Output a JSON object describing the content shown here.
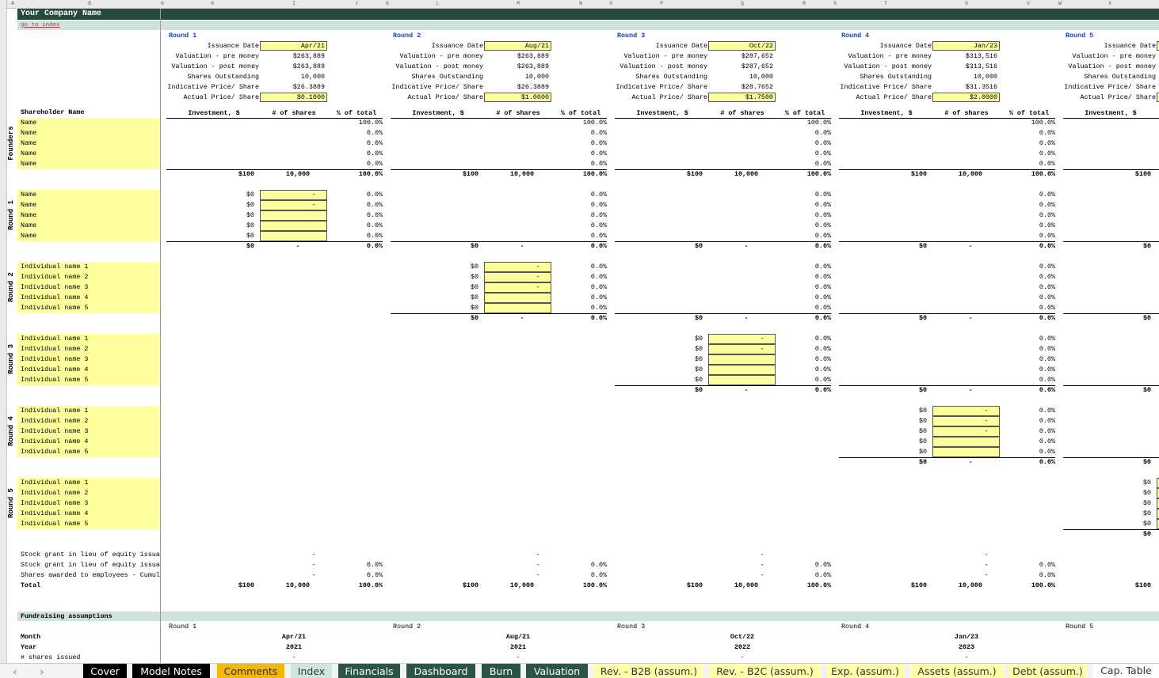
{
  "column_letters": [
    "A",
    "B",
    "G",
    "H",
    "I",
    "J",
    "K",
    "L",
    "M",
    "N",
    "O",
    "P",
    "Q",
    "R",
    "S",
    "T",
    "U",
    "V",
    "W",
    "X"
  ],
  "header": {
    "title": "Your Company Name",
    "link": "go to index"
  },
  "round_field_labels": [
    "Issuance Date",
    "Valuation - pre money",
    "Valuation - post money",
    "Shares Outstanding",
    "Indicative Price/ Share",
    "Actual Price/ Share"
  ],
  "rounds": [
    {
      "title": "Round 1",
      "fields": [
        "Apr/21",
        "$263,889",
        "$263,889",
        "10,000",
        "$26.3889",
        "$0.1000"
      ]
    },
    {
      "title": "Round 2",
      "fields": [
        "Aug/21",
        "$263,889",
        "$263,889",
        "10,000",
        "$26.3889",
        "$1.0000"
      ]
    },
    {
      "title": "Round 3",
      "fields": [
        "Oct/22",
        "$287,652",
        "$287,652",
        "10,000",
        "$28.7652",
        "$1.7500"
      ]
    },
    {
      "title": "Round 4",
      "fields": [
        "Jan/23",
        "$313,516",
        "$313,516",
        "10,000",
        "$31.3516",
        "$2.0000"
      ]
    },
    {
      "title": "Round 5"
    }
  ],
  "shareholder_header": "Shareholder Name",
  "table_headers": [
    "Investment, $",
    "# of shares",
    "% of total"
  ],
  "groups": [
    {
      "label": "Founders",
      "names": [
        "Name",
        "Name",
        "Name",
        "Name",
        "Name"
      ]
    },
    {
      "label": "Round 1",
      "names": [
        "Name",
        "Name",
        "Name",
        "Name",
        "Name"
      ]
    },
    {
      "label": "Round 2",
      "names": [
        "Individual name 1",
        "Individual name 2",
        "Individual name 3",
        "Individual name 4",
        "Individual name 5"
      ]
    },
    {
      "label": "Round 3",
      "names": [
        "Individual name 1",
        "Individual name 2",
        "Individual name 3",
        "Individual name 4",
        "Individual name 5"
      ]
    },
    {
      "label": "Round 4",
      "names": [
        "Individual name 1",
        "Individual name 2",
        "Individual name 3",
        "Individual name 4",
        "Individual name 5"
      ]
    },
    {
      "label": "Round 5",
      "names": [
        "Individual name 1",
        "Individual name 2",
        "Individual name 3",
        "Individual name 4",
        "Individual name 5"
      ]
    }
  ],
  "blocks": [
    {
      "sections": [
        {
          "rows": [
            [
              null,
              null,
              "100.0%"
            ],
            [
              null,
              null,
              "0.0%"
            ],
            [
              null,
              null,
              "0.0%"
            ],
            [
              null,
              null,
              "0.0%"
            ],
            [
              null,
              null,
              "0.0%"
            ]
          ],
          "total": [
            "$100",
            "10,000",
            "100.0%"
          ]
        },
        {
          "input": true,
          "rows": [
            [
              "$0",
              "-",
              "0.0%"
            ],
            [
              "$0",
              "-",
              "0.0%"
            ],
            [
              "$0",
              null,
              "0.0%"
            ],
            [
              "$0",
              null,
              "0.0%"
            ],
            [
              "$0",
              null,
              "0.0%"
            ]
          ],
          "total": [
            "$0",
            "-",
            "0.0%"
          ]
        },
        null,
        null,
        null,
        null
      ],
      "grants": [
        [
          null,
          "-",
          null
        ],
        [
          null,
          "-",
          "0.0%"
        ],
        [
          null,
          "-",
          "0.0%"
        ]
      ],
      "total": [
        "$100",
        "10,000",
        "100.0%"
      ]
    },
    {
      "sections": [
        {
          "rows": [
            [
              null,
              null,
              "100.0%"
            ],
            [
              null,
              null,
              "0.0%"
            ],
            [
              null,
              null,
              "0.0%"
            ],
            [
              null,
              null,
              "0.0%"
            ],
            [
              null,
              null,
              "0.0%"
            ]
          ],
          "total": [
            "$100",
            "10,000",
            "100.0%"
          ]
        },
        {
          "rows": [
            [
              null,
              null,
              "0.0%"
            ],
            [
              null,
              null,
              "0.0%"
            ],
            [
              null,
              null,
              "0.0%"
            ],
            [
              null,
              null,
              "0.0%"
            ],
            [
              null,
              null,
              "0.0%"
            ]
          ],
          "total": [
            "$0",
            "-",
            "0.0%"
          ]
        },
        {
          "input": true,
          "rows": [
            [
              "$0",
              "-",
              "0.0%"
            ],
            [
              "$0",
              "-",
              "0.0%"
            ],
            [
              "$0",
              "-",
              "0.0%"
            ],
            [
              "$0",
              null,
              "0.0%"
            ],
            [
              "$0",
              null,
              "0.0%"
            ]
          ],
          "total": [
            "$0",
            "-",
            "0.0%"
          ]
        },
        null,
        null,
        null
      ],
      "grants": [
        [
          null,
          "-",
          null
        ],
        [
          null,
          "-",
          "0.0%"
        ],
        [
          null,
          "-",
          "0.0%"
        ]
      ],
      "total": [
        "$100",
        "10,000",
        "100.0%"
      ]
    },
    {
      "sections": [
        {
          "rows": [
            [
              null,
              null,
              "100.0%"
            ],
            [
              null,
              null,
              "0.0%"
            ],
            [
              null,
              null,
              "0.0%"
            ],
            [
              null,
              null,
              "0.0%"
            ],
            [
              null,
              null,
              "0.0%"
            ]
          ],
          "total": [
            "$100",
            "10,000",
            "100.0%"
          ]
        },
        {
          "rows": [
            [
              null,
              null,
              "0.0%"
            ],
            [
              null,
              null,
              "0.0%"
            ],
            [
              null,
              null,
              "0.0%"
            ],
            [
              null,
              null,
              "0.0%"
            ],
            [
              null,
              null,
              "0.0%"
            ]
          ],
          "total": [
            "$0",
            "-",
            "0.0%"
          ]
        },
        {
          "rows": [
            [
              null,
              null,
              "0.0%"
            ],
            [
              null,
              null,
              "0.0%"
            ],
            [
              null,
              null,
              "0.0%"
            ],
            [
              null,
              null,
              "0.0%"
            ],
            [
              null,
              null,
              "0.0%"
            ]
          ],
          "total": [
            "$0",
            "-",
            "0.0%"
          ]
        },
        {
          "input": true,
          "rows": [
            [
              "$0",
              "-",
              "0.0%"
            ],
            [
              "$0",
              "-",
              "0.0%"
            ],
            [
              "$0",
              null,
              "0.0%"
            ],
            [
              "$0",
              null,
              "0.0%"
            ],
            [
              "$0",
              null,
              "0.0%"
            ]
          ],
          "total": [
            "$0",
            "-",
            "0.0%"
          ]
        },
        null,
        null
      ],
      "grants": [
        [
          null,
          "-",
          null
        ],
        [
          null,
          "-",
          "0.0%"
        ],
        [
          null,
          "-",
          "0.0%"
        ]
      ],
      "total": [
        "$100",
        "10,000",
        "100.0%"
      ]
    },
    {
      "sections": [
        {
          "rows": [
            [
              null,
              null,
              "100.0%"
            ],
            [
              null,
              null,
              "0.0%"
            ],
            [
              null,
              null,
              "0.0%"
            ],
            [
              null,
              null,
              "0.0%"
            ],
            [
              null,
              null,
              "0.0%"
            ]
          ],
          "total": [
            "$100",
            "10,000",
            "100.0%"
          ]
        },
        {
          "rows": [
            [
              null,
              null,
              "0.0%"
            ],
            [
              null,
              null,
              "0.0%"
            ],
            [
              null,
              null,
              "0.0%"
            ],
            [
              null,
              null,
              "0.0%"
            ],
            [
              null,
              null,
              "0.0%"
            ]
          ],
          "total": [
            "$0",
            "-",
            "0.0%"
          ]
        },
        {
          "rows": [
            [
              null,
              null,
              "0.0%"
            ],
            [
              null,
              null,
              "0.0%"
            ],
            [
              null,
              null,
              "0.0%"
            ],
            [
              null,
              null,
              "0.0%"
            ],
            [
              null,
              null,
              "0.0%"
            ]
          ],
          "total": [
            "$0",
            "-",
            "0.0%"
          ]
        },
        {
          "rows": [
            [
              null,
              null,
              "0.0%"
            ],
            [
              null,
              null,
              "0.0%"
            ],
            [
              null,
              null,
              "0.0%"
            ],
            [
              null,
              null,
              "0.0%"
            ],
            [
              null,
              null,
              "0.0%"
            ]
          ],
          "total": [
            "$0",
            "-",
            "0.0%"
          ]
        },
        {
          "input": true,
          "rows": [
            [
              "$0",
              "-",
              "0.0%"
            ],
            [
              "$0",
              "-",
              "0.0%"
            ],
            [
              "$0",
              "-",
              "0.0%"
            ],
            [
              "$0",
              null,
              "0.0%"
            ],
            [
              "$0",
              null,
              "0.0%"
            ]
          ],
          "total": [
            "$0",
            "-",
            "0.0%"
          ]
        },
        null
      ],
      "grants": [
        [
          null,
          "-",
          null
        ],
        [
          null,
          "-",
          "0.0%"
        ],
        [
          null,
          "-",
          "0.0%"
        ]
      ],
      "total": [
        "$100",
        "10,000",
        "100.0%"
      ]
    },
    {
      "sections": [
        {
          "total": [
            "$100",
            null,
            null
          ]
        },
        {
          "total": [
            "$0",
            null,
            null
          ]
        },
        {
          "total": [
            "$0",
            null,
            null
          ]
        },
        {
          "total": [
            "$0",
            null,
            null
          ]
        },
        {
          "total": [
            "$0",
            null,
            null
          ]
        },
        {
          "input": true,
          "rows": [
            [
              "$0",
              null,
              null
            ],
            [
              "$0",
              null,
              null
            ],
            [
              "$0",
              null,
              null
            ],
            [
              "$0",
              null,
              null
            ],
            [
              "$0",
              null,
              null
            ]
          ],
          "total": [
            "$0",
            null,
            null
          ]
        }
      ],
      "total": [
        "$100",
        null,
        null
      ]
    }
  ],
  "grant_labels": [
    "Stock grant in lieu of equity issua",
    "Stock grant in lieu of equity issua",
    "Shares awarded to employees - Cumul"
  ],
  "total_label": "Total",
  "fundraising": {
    "title": "Fundraising assumptions",
    "labels": [
      "Month",
      "Year",
      "# shares issued"
    ],
    "rounds": [
      {
        "title": "Round 1",
        "month": "Apr/21",
        "year": "2021",
        "shares": "-"
      },
      {
        "title": "Round 2",
        "month": "Aug/21",
        "year": "2021",
        "shares": "-"
      },
      {
        "title": "Round 3",
        "month": "Oct/22",
        "year": "2022",
        "shares": "-"
      },
      {
        "title": "Round 4",
        "month": "Jan/23",
        "year": "2023",
        "shares": "-"
      },
      {
        "title": "Round 5"
      }
    ]
  },
  "tabs": [
    "Cover",
    "Model Notes",
    "Comments",
    "Index",
    "Financials",
    "Dashboard",
    "Burn",
    "Valuation",
    "Rev. - B2B (assum.)",
    "Rev. - B2C (assum.)",
    "Exp. (assum.)",
    "Assets (assum.)",
    "Debt (assum.)",
    "Cap. Table"
  ]
}
